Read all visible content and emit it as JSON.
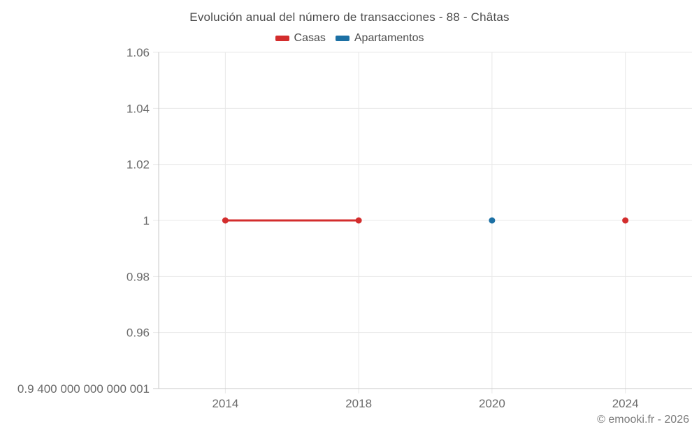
{
  "footer": "© emooki.fr - 2026",
  "chart_data": {
    "type": "line",
    "title": "Evolución anual del número de transacciones - 88 - Châtas",
    "xlabel": "",
    "ylabel": "",
    "categories": [
      "2014",
      "2018",
      "2020",
      "2024"
    ],
    "series": [
      {
        "name": "Casas",
        "color": "#d32d2d",
        "values": [
          1,
          1,
          null,
          1
        ]
      },
      {
        "name": "Apartamentos",
        "color": "#1c70a4",
        "values": [
          null,
          null,
          1,
          null
        ]
      }
    ],
    "ylim": [
      0.9400000000000001,
      1.06
    ],
    "y_ticks": [
      {
        "value": 1.06,
        "label": "1.06"
      },
      {
        "value": 1.04,
        "label": "1.04"
      },
      {
        "value": 1.02,
        "label": "1.02"
      },
      {
        "value": 1,
        "label": "1"
      },
      {
        "value": 0.98,
        "label": "0.98"
      },
      {
        "value": 0.96,
        "label": "0.96"
      },
      {
        "value": 0.9400000000000001,
        "label": "0.9 400 000 000 000 001"
      }
    ],
    "grid": true,
    "grid_color": "#e8e8e8",
    "axis_color": "#c9c9c9",
    "legend_position": "top"
  }
}
